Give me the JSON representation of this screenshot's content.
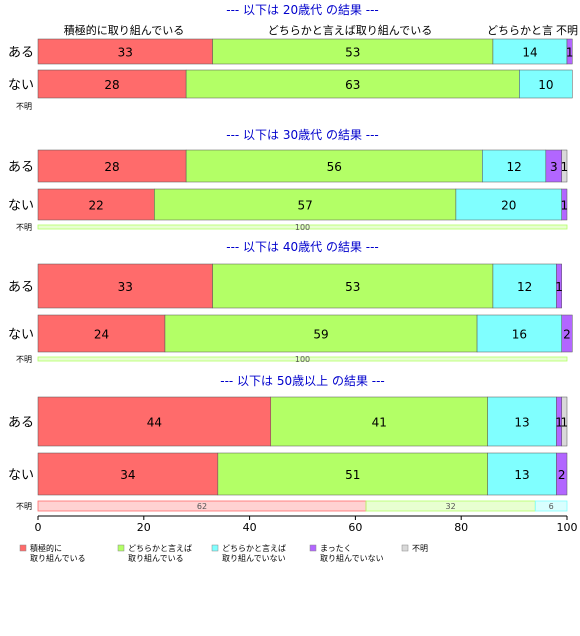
{
  "chart_data": {
    "type": "bar",
    "stacked": true,
    "orientation": "horizontal",
    "xlim": [
      0,
      100
    ],
    "x_ticks": [
      0,
      20,
      40,
      60,
      80,
      100
    ],
    "column_headers": [
      "積極的に取り組んでいる",
      "どちらかと言えば取り組んでいる",
      "どちらかと言"
    ],
    "column_header_trailing": "不明",
    "categories": [
      {
        "label": "積極的に\n取り組んでいる",
        "color": "#ff6b6b"
      },
      {
        "label": "どちらかと言えば\n取り組んでいる",
        "color": "#b3ff66"
      },
      {
        "label": "どちらかと言えば\n取り組んでいない",
        "color": "#80ffff"
      },
      {
        "label": "まったく\n取り組んでいない",
        "color": "#b266ff"
      },
      {
        "label": "不明",
        "color": "#d9d9d9"
      }
    ],
    "panels": [
      {
        "title": "--- 以下は 20歳代 の結果 ---",
        "rows": [
          {
            "label": "ある",
            "values": [
              33,
              53,
              14,
              1,
              0
            ],
            "labels": [
              "33",
              "53",
              "14",
              "1",
              ""
            ]
          },
          {
            "label": "ない",
            "values": [
              28,
              63,
              10,
              0,
              0
            ],
            "labels": [
              "28",
              "63",
              "10",
              "",
              ""
            ]
          }
        ],
        "unknown_label": "不明",
        "unknown_values": [],
        "unknown_labels": []
      },
      {
        "title": "--- 以下は 30歳代 の結果 ---",
        "rows": [
          {
            "label": "ある",
            "values": [
              28,
              56,
              12,
              3,
              1
            ],
            "labels": [
              "28",
              "56",
              "12",
              "3",
              "1"
            ]
          },
          {
            "label": "ない",
            "values": [
              22,
              57,
              20,
              1,
              0
            ],
            "labels": [
              "22",
              "57",
              "20",
              "1",
              ""
            ]
          }
        ],
        "unknown_label": "不明",
        "unknown_values": [
          0,
          100,
          0,
          0,
          0
        ],
        "unknown_labels": [
          "",
          "100",
          "",
          "",
          ""
        ]
      },
      {
        "title": "--- 以下は 40歳代 の結果 ---",
        "rows": [
          {
            "label": "ある",
            "values": [
              33,
              53,
              12,
              1,
              0
            ],
            "labels": [
              "33",
              "53",
              "12",
              "1",
              ""
            ]
          },
          {
            "label": "ない",
            "values": [
              24,
              59,
              16,
              2,
              0
            ],
            "labels": [
              "24",
              "59",
              "16",
              "2",
              ""
            ]
          }
        ],
        "unknown_label": "不明",
        "unknown_values": [
          0,
          100,
          0,
          0,
          0
        ],
        "unknown_labels": [
          "",
          "100",
          "",
          "",
          ""
        ]
      },
      {
        "title": "--- 以下は 50歳以上 の結果 ---",
        "rows": [
          {
            "label": "ある",
            "values": [
              44,
              41,
              13,
              1,
              1
            ],
            "labels": [
              "44",
              "41",
              "13",
              "1",
              "1"
            ]
          },
          {
            "label": "ない",
            "values": [
              34,
              51,
              13,
              2,
              0
            ],
            "labels": [
              "34",
              "51",
              "13",
              "2",
              ""
            ]
          }
        ],
        "unknown_label": "不明",
        "unknown_values": [
          62,
          32,
          6,
          0,
          0
        ],
        "unknown_labels": [
          "62",
          "32",
          "6",
          "",
          ""
        ]
      }
    ],
    "title_color": "#0000cc"
  }
}
